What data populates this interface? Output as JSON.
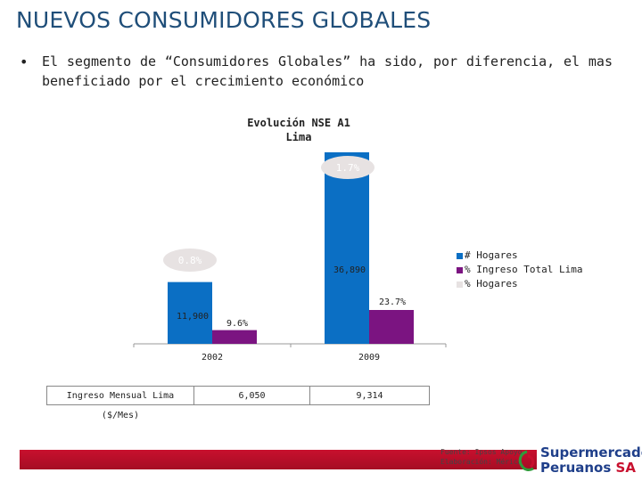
{
  "slide": {
    "title": "NUEVOS CONSUMIDORES GLOBALES",
    "bullet": "El segmento de “Consumidores Globales” ha sido, por diferencia, el mas beneficiado por el crecimiento económico"
  },
  "chart_data": {
    "type": "bar",
    "title": "Evolución NSE A1\nLima",
    "categories": [
      "2002",
      "2009"
    ],
    "series": [
      {
        "name": "# Hogares",
        "color": "#0b6fc4",
        "values": [
          11900,
          36890
        ],
        "labels": [
          "11,900",
          "36,890"
        ]
      },
      {
        "name": "% Ingreso Total Lima",
        "color": "#7b1481",
        "values": [
          9.6,
          23.7
        ],
        "labels": [
          "9.6%",
          "23.7%"
        ]
      },
      {
        "name": "% Hogares",
        "color": "#e7e2e2",
        "values": [
          0.8,
          1.7
        ],
        "labels": [
          "0.8%",
          "1.7%"
        ]
      }
    ],
    "legend_position": "right",
    "grid": false
  },
  "table": {
    "label": "Ingreso Mensual Lima ($/Mes)",
    "values": [
      "6,050",
      "9,314"
    ]
  },
  "footer": {
    "source_line1": "Fuente: Ipsos Apoyo",
    "source_line2": "Elaboración: Mérica"
  },
  "logo": {
    "line1": "Supermercados",
    "line2": "Peruanos",
    "suffix": "SA"
  }
}
